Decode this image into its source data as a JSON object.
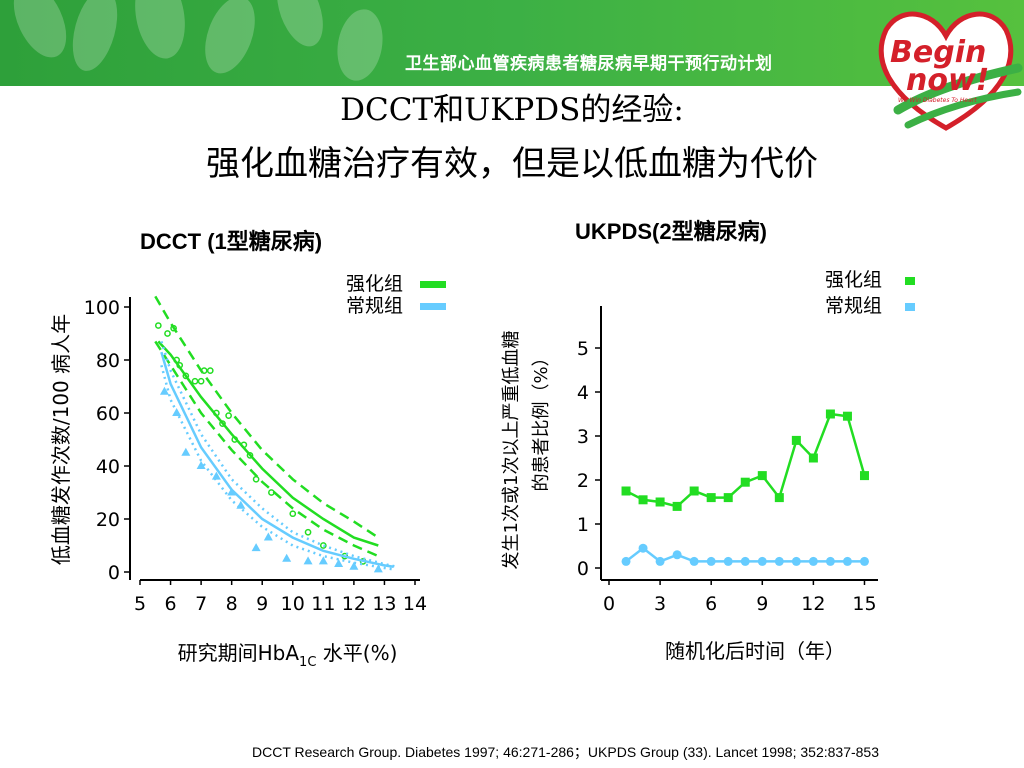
{
  "banner": {
    "text": "卫生部心血管疾病患者糖尿病早期干预行动计划",
    "logo_line1": "Begin",
    "logo_line2": "now!",
    "logo_tagline": "We Win Diabetes To Heart",
    "colors": {
      "green": "#3cb045",
      "red": "#d4202a"
    }
  },
  "slide": {
    "title_line1": "DCCT和UKPDS的经验:",
    "title_line2": "强化血糖治疗有效，但是以低血糖为代价"
  },
  "reference": "DCCT Research Group. Diabetes 1997; 46:271-286；UKPDS Group (33). Lancet 1998; 352:837-853",
  "chart_data": [
    {
      "type": "scatter",
      "title": "DCCT (1型糖尿病)",
      "xlabel_main": "研究期间HbA",
      "xlabel_sub": "1C",
      "xlabel_tail": " 水平(%)",
      "ylabel": "低血糖发作次数/100 病人年",
      "xlim": [
        5,
        14
      ],
      "ylim": [
        0,
        100
      ],
      "xticks": [
        5,
        6,
        7,
        8,
        9,
        10,
        11,
        12,
        13,
        14
      ],
      "yticks": [
        0,
        20,
        40,
        60,
        80,
        100
      ],
      "legend_position": "top-right",
      "colors": {
        "intensive": "#22dd22",
        "conventional": "#66ccff"
      },
      "series": [
        {
          "name": "强化组",
          "points": [
            [
              5.6,
              93
            ],
            [
              5.9,
              90
            ],
            [
              6.1,
              92
            ],
            [
              6.2,
              80
            ],
            [
              6.3,
              78
            ],
            [
              6.5,
              74
            ],
            [
              6.8,
              72
            ],
            [
              7.0,
              72
            ],
            [
              7.1,
              76
            ],
            [
              7.3,
              76
            ],
            [
              7.5,
              60
            ],
            [
              7.7,
              56
            ],
            [
              7.9,
              59
            ],
            [
              8.1,
              50
            ],
            [
              8.4,
              48
            ],
            [
              8.6,
              44
            ],
            [
              8.8,
              35
            ],
            [
              9.3,
              30
            ],
            [
              10.0,
              22
            ],
            [
              10.5,
              15
            ],
            [
              11.0,
              10
            ],
            [
              11.7,
              6
            ],
            [
              12.3,
              4
            ]
          ],
          "fit": [
            [
              5.6,
              87
            ],
            [
              6,
              82
            ],
            [
              7,
              66
            ],
            [
              8,
              52
            ],
            [
              9,
              39
            ],
            [
              10,
              28
            ],
            [
              11,
              20
            ],
            [
              12,
              13
            ],
            [
              12.8,
              10
            ]
          ],
          "ci_upper": [
            [
              5.5,
              104
            ],
            [
              6,
              94
            ],
            [
              7,
              76
            ],
            [
              8,
              60
            ],
            [
              9,
              46
            ],
            [
              10,
              35
            ],
            [
              11,
              26
            ],
            [
              12,
              19
            ],
            [
              12.8,
              13
            ]
          ],
          "ci_lower": [
            [
              5.5,
              87
            ],
            [
              6,
              78
            ],
            [
              7,
              60
            ],
            [
              8,
              46
            ],
            [
              9,
              34
            ],
            [
              10,
              24
            ],
            [
              11,
              16
            ],
            [
              12,
              10
            ],
            [
              12.8,
              6
            ]
          ]
        },
        {
          "name": "常规组",
          "points": [
            [
              5.8,
              68
            ],
            [
              6.2,
              60
            ],
            [
              6.5,
              45
            ],
            [
              7.0,
              40
            ],
            [
              7.5,
              36
            ],
            [
              8.0,
              30
            ],
            [
              8.3,
              25
            ],
            [
              8.8,
              9
            ],
            [
              9.2,
              13
            ],
            [
              9.8,
              5
            ],
            [
              10.5,
              4
            ],
            [
              11.0,
              4
            ],
            [
              11.5,
              3
            ],
            [
              12.0,
              2
            ],
            [
              12.8,
              1
            ]
          ],
          "fit": [
            [
              5.7,
              83
            ],
            [
              6,
              71
            ],
            [
              7,
              47
            ],
            [
              8,
              31
            ],
            [
              9,
              20
            ],
            [
              10,
              13
            ],
            [
              11,
              8
            ],
            [
              12,
              5
            ],
            [
              13,
              2.5
            ],
            [
              13.3,
              2
            ]
          ],
          "ci_upper": [
            [
              5.7,
              87
            ],
            [
              6,
              76
            ],
            [
              7,
              52
            ],
            [
              8,
              35
            ],
            [
              9,
              24
            ],
            [
              10,
              15
            ],
            [
              11,
              10
            ],
            [
              12,
              6
            ],
            [
              13,
              3
            ],
            [
              13.4,
              2
            ]
          ],
          "ci_lower": [
            [
              5.7,
              78
            ],
            [
              6,
              65
            ],
            [
              7,
              42
            ],
            [
              8,
              27
            ],
            [
              9,
              17
            ],
            [
              10,
              10
            ],
            [
              11,
              6
            ],
            [
              12,
              3.5
            ],
            [
              13,
              1.5
            ],
            [
              13.3,
              1
            ]
          ]
        }
      ]
    },
    {
      "type": "line",
      "title": "UKPDS(2型糖尿病)",
      "xlabel": "随机化后时间（年）",
      "ylabel_line1": "发生1次或1次以上严重低血糖",
      "ylabel_line2": "的患者比例（%）",
      "xlim": [
        0,
        15.5
      ],
      "ylim": [
        0,
        5.5
      ],
      "xticks": [
        0,
        3,
        6,
        9,
        12,
        15
      ],
      "yticks": [
        0,
        1,
        2,
        3,
        4,
        5
      ],
      "legend_position": "top-right",
      "colors": {
        "intensive": "#22dd22",
        "conventional": "#66ccff"
      },
      "series": [
        {
          "name": "强化组",
          "x": [
            1,
            2,
            3,
            4,
            5,
            6,
            7,
            8,
            9,
            10,
            11,
            12,
            13,
            14,
            15
          ],
          "values": [
            1.75,
            1.55,
            1.5,
            1.4,
            1.75,
            1.6,
            1.6,
            1.95,
            2.1,
            1.6,
            2.9,
            2.5,
            3.5,
            3.45,
            2.1
          ]
        },
        {
          "name": "常规组",
          "x": [
            1,
            2,
            3,
            4,
            5,
            6,
            7,
            8,
            9,
            10,
            11,
            12,
            13,
            14,
            15
          ],
          "values": [
            0.15,
            0.45,
            0.15,
            0.3,
            0.15,
            0.15,
            0.15,
            0.15,
            0.15,
            0.15,
            0.15,
            0.15,
            0.15,
            0.15,
            0.15
          ]
        }
      ]
    }
  ]
}
